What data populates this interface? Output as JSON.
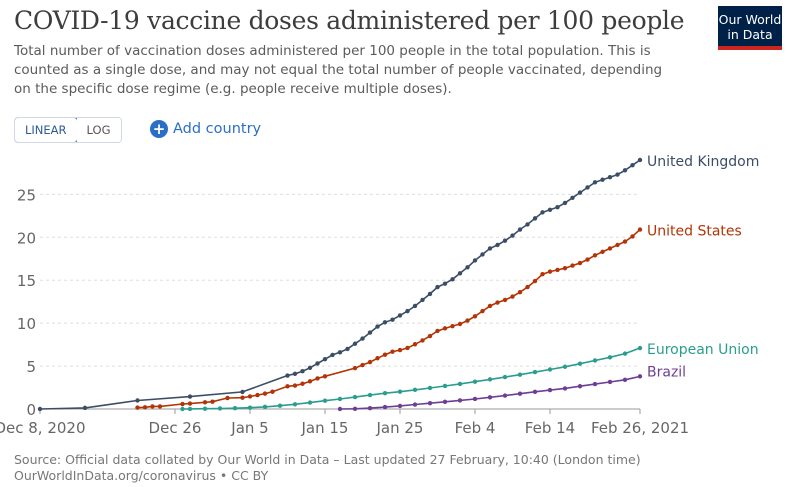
{
  "header": {
    "title": "COVID-19 vaccine doses administered per 100 people",
    "subtitle": "Total number of vaccination doses administered per 100 people in the total population. This is counted as a single dose, and may not equal the total number of people vaccinated, depending on the specific dose regime (e.g. people receive multiple doses).",
    "logo_line1": "Our World",
    "logo_line2": "in Data"
  },
  "controls": {
    "linear_label": "LINEAR",
    "log_label": "LOG",
    "add_country_label": "Add country"
  },
  "footer": {
    "source": "Source: Official data collated by Our World in Data – Last updated 27 February, 10:40 (London time)",
    "url": "OurWorldInData.org/coronavirus • CC BY"
  },
  "colors": {
    "United Kingdom": "#3c4e66",
    "United States": "#b13507",
    "European Union": "#2a9d8f",
    "Brazil": "#6d3e91",
    "grid": "#dddddd",
    "axis": "#666666"
  },
  "chart_data": {
    "type": "line",
    "title": "COVID-19 vaccine doses administered per 100 people",
    "xlabel": "",
    "ylabel": "",
    "xlim": [
      "2020-12-08",
      "2021-02-26"
    ],
    "ylim": [
      0,
      29
    ],
    "y_ticks": [
      0,
      5,
      10,
      15,
      20,
      25
    ],
    "x_ticks": [
      {
        "date": "2020-12-08",
        "label": "Dec 8, 2020"
      },
      {
        "date": "2020-12-26",
        "label": "Dec 26"
      },
      {
        "date": "2021-01-05",
        "label": "Jan 5"
      },
      {
        "date": "2021-01-15",
        "label": "Jan 15"
      },
      {
        "date": "2021-01-25",
        "label": "Jan 25"
      },
      {
        "date": "2021-02-04",
        "label": "Feb 4"
      },
      {
        "date": "2021-02-14",
        "label": "Feb 14"
      },
      {
        "date": "2021-02-26",
        "label": "Feb 26, 2021"
      }
    ],
    "grid": "horizontal",
    "legend": "line-end labels",
    "series": [
      {
        "name": "United Kingdom",
        "points": [
          [
            "2020-12-08",
            0
          ],
          [
            "2020-12-14",
            0.13
          ],
          [
            "2020-12-21",
            0.99
          ],
          [
            "2020-12-28",
            1.45
          ],
          [
            "2021-01-04",
            1.99
          ],
          [
            "2021-01-10",
            3.9
          ],
          [
            "2021-01-11",
            4.1
          ],
          [
            "2021-01-12",
            4.4
          ],
          [
            "2021-01-13",
            4.8
          ],
          [
            "2021-01-14",
            5.3
          ],
          [
            "2021-01-15",
            5.8
          ],
          [
            "2021-01-16",
            6.3
          ],
          [
            "2021-01-17",
            6.6
          ],
          [
            "2021-01-18",
            7.0
          ],
          [
            "2021-01-19",
            7.6
          ],
          [
            "2021-01-20",
            8.2
          ],
          [
            "2021-01-21",
            8.9
          ],
          [
            "2021-01-22",
            9.6
          ],
          [
            "2021-01-23",
            10.1
          ],
          [
            "2021-01-24",
            10.4
          ],
          [
            "2021-01-25",
            10.9
          ],
          [
            "2021-01-26",
            11.4
          ],
          [
            "2021-01-27",
            12.0
          ],
          [
            "2021-01-28",
            12.7
          ],
          [
            "2021-01-29",
            13.4
          ],
          [
            "2021-01-30",
            14.2
          ],
          [
            "2021-01-31",
            14.6
          ],
          [
            "2021-02-01",
            15.1
          ],
          [
            "2021-02-02",
            15.8
          ],
          [
            "2021-02-03",
            16.5
          ],
          [
            "2021-02-04",
            17.3
          ],
          [
            "2021-02-05",
            18.0
          ],
          [
            "2021-02-06",
            18.7
          ],
          [
            "2021-02-07",
            19.1
          ],
          [
            "2021-02-08",
            19.6
          ],
          [
            "2021-02-09",
            20.2
          ],
          [
            "2021-02-10",
            20.9
          ],
          [
            "2021-02-11",
            21.5
          ],
          [
            "2021-02-12",
            22.2
          ],
          [
            "2021-02-13",
            22.9
          ],
          [
            "2021-02-14",
            23.2
          ],
          [
            "2021-02-15",
            23.5
          ],
          [
            "2021-02-16",
            24.0
          ],
          [
            "2021-02-17",
            24.6
          ],
          [
            "2021-02-18",
            25.2
          ],
          [
            "2021-02-19",
            25.8
          ],
          [
            "2021-02-20",
            26.4
          ],
          [
            "2021-02-21",
            26.7
          ],
          [
            "2021-02-22",
            27.0
          ],
          [
            "2021-02-23",
            27.3
          ],
          [
            "2021-02-24",
            27.8
          ],
          [
            "2021-02-25",
            28.4
          ],
          [
            "2021-02-26",
            29.0
          ]
        ]
      },
      {
        "name": "United States",
        "points": [
          [
            "2020-12-21",
            0.16
          ],
          [
            "2020-12-22",
            0.2
          ],
          [
            "2020-12-23",
            0.3
          ],
          [
            "2020-12-24",
            0.3
          ],
          [
            "2020-12-27",
            0.58
          ],
          [
            "2020-12-28",
            0.63
          ],
          [
            "2020-12-30",
            0.78
          ],
          [
            "2020-12-31",
            0.85
          ],
          [
            "2021-01-02",
            1.28
          ],
          [
            "2021-01-04",
            1.32
          ],
          [
            "2021-01-05",
            1.46
          ],
          [
            "2021-01-06",
            1.62
          ],
          [
            "2021-01-07",
            1.79
          ],
          [
            "2021-01-08",
            2.01
          ],
          [
            "2021-01-10",
            2.64
          ],
          [
            "2021-01-11",
            2.73
          ],
          [
            "2021-01-12",
            2.94
          ],
          [
            "2021-01-13",
            3.22
          ],
          [
            "2021-01-14",
            3.56
          ],
          [
            "2021-01-15",
            3.81
          ],
          [
            "2021-01-19",
            4.76
          ],
          [
            "2021-01-20",
            5.12
          ],
          [
            "2021-01-21",
            5.46
          ],
          [
            "2021-01-22",
            5.91
          ],
          [
            "2021-01-23",
            6.32
          ],
          [
            "2021-01-24",
            6.68
          ],
          [
            "2021-01-25",
            6.86
          ],
          [
            "2021-01-26",
            7.11
          ],
          [
            "2021-01-27",
            7.54
          ],
          [
            "2021-01-28",
            7.99
          ],
          [
            "2021-01-29",
            8.5
          ],
          [
            "2021-01-30",
            9.09
          ],
          [
            "2021-01-31",
            9.39
          ],
          [
            "2021-02-01",
            9.65
          ],
          [
            "2021-02-02",
            9.9
          ],
          [
            "2021-02-03",
            10.3
          ],
          [
            "2021-02-04",
            10.8
          ],
          [
            "2021-02-05",
            11.4
          ],
          [
            "2021-02-06",
            12.0
          ],
          [
            "2021-02-07",
            12.4
          ],
          [
            "2021-02-08",
            12.7
          ],
          [
            "2021-02-09",
            13.1
          ],
          [
            "2021-02-10",
            13.6
          ],
          [
            "2021-02-11",
            14.2
          ],
          [
            "2021-02-12",
            14.9
          ],
          [
            "2021-02-13",
            15.7
          ],
          [
            "2021-02-14",
            16.0
          ],
          [
            "2021-02-15",
            16.2
          ],
          [
            "2021-02-16",
            16.4
          ],
          [
            "2021-02-17",
            16.7
          ],
          [
            "2021-02-18",
            17.0
          ],
          [
            "2021-02-19",
            17.4
          ],
          [
            "2021-02-20",
            17.9
          ],
          [
            "2021-02-21",
            18.3
          ],
          [
            "2021-02-22",
            18.7
          ],
          [
            "2021-02-23",
            19.1
          ],
          [
            "2021-02-24",
            19.5
          ],
          [
            "2021-02-25",
            20.1
          ],
          [
            "2021-02-26",
            20.9
          ]
        ]
      },
      {
        "name": "European Union",
        "points": [
          [
            "2020-12-27",
            0
          ],
          [
            "2020-12-28",
            0.01
          ],
          [
            "2020-12-30",
            0.03
          ],
          [
            "2021-01-01",
            0.06
          ],
          [
            "2021-01-03",
            0.09
          ],
          [
            "2021-01-05",
            0.15
          ],
          [
            "2021-01-07",
            0.25
          ],
          [
            "2021-01-09",
            0.39
          ],
          [
            "2021-01-11",
            0.55
          ],
          [
            "2021-01-13",
            0.75
          ],
          [
            "2021-01-15",
            0.97
          ],
          [
            "2021-01-17",
            1.17
          ],
          [
            "2021-01-19",
            1.39
          ],
          [
            "2021-01-21",
            1.62
          ],
          [
            "2021-01-23",
            1.84
          ],
          [
            "2021-01-25",
            2.02
          ],
          [
            "2021-01-27",
            2.23
          ],
          [
            "2021-01-29",
            2.45
          ],
          [
            "2021-01-31",
            2.68
          ],
          [
            "2021-02-02",
            2.92
          ],
          [
            "2021-02-04",
            3.18
          ],
          [
            "2021-02-06",
            3.45
          ],
          [
            "2021-02-08",
            3.72
          ],
          [
            "2021-02-10",
            4.0
          ],
          [
            "2021-02-12",
            4.3
          ],
          [
            "2021-02-14",
            4.6
          ],
          [
            "2021-02-16",
            4.92
          ],
          [
            "2021-02-18",
            5.28
          ],
          [
            "2021-02-20",
            5.65
          ],
          [
            "2021-02-22",
            6.02
          ],
          [
            "2021-02-24",
            6.45
          ],
          [
            "2021-02-26",
            7.1
          ]
        ]
      },
      {
        "name": "Brazil",
        "points": [
          [
            "2021-01-17",
            0
          ],
          [
            "2021-01-19",
            0.02
          ],
          [
            "2021-01-21",
            0.1
          ],
          [
            "2021-01-23",
            0.22
          ],
          [
            "2021-01-25",
            0.36
          ],
          [
            "2021-01-27",
            0.52
          ],
          [
            "2021-01-29",
            0.68
          ],
          [
            "2021-01-31",
            0.84
          ],
          [
            "2021-02-02",
            1.0
          ],
          [
            "2021-02-04",
            1.17
          ],
          [
            "2021-02-06",
            1.36
          ],
          [
            "2021-02-08",
            1.56
          ],
          [
            "2021-02-10",
            1.78
          ],
          [
            "2021-02-12",
            2.0
          ],
          [
            "2021-02-14",
            2.2
          ],
          [
            "2021-02-16",
            2.4
          ],
          [
            "2021-02-18",
            2.65
          ],
          [
            "2021-02-20",
            2.9
          ],
          [
            "2021-02-22",
            3.15
          ],
          [
            "2021-02-24",
            3.4
          ],
          [
            "2021-02-26",
            3.8
          ]
        ]
      }
    ]
  }
}
